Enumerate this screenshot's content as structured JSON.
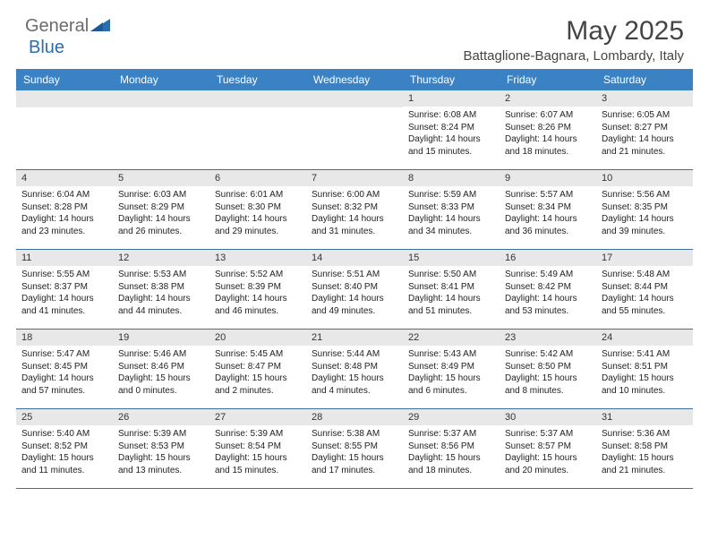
{
  "logo": {
    "text1": "General",
    "text2": "Blue"
  },
  "title": "May 2025",
  "location": "Battaglione-Bagnara, Lombardy, Italy",
  "colors": {
    "header_bg": "#3b82c4",
    "header_text": "#ffffff",
    "daynum_bg": "#e8e8e8",
    "border": "#3b6fa0",
    "logo_gray": "#6b6b6b",
    "logo_blue": "#2a6db0"
  },
  "dayNames": [
    "Sunday",
    "Monday",
    "Tuesday",
    "Wednesday",
    "Thursday",
    "Friday",
    "Saturday"
  ],
  "weeks": [
    [
      {
        "num": "",
        "sunrise": "",
        "sunset": "",
        "daylight": ""
      },
      {
        "num": "",
        "sunrise": "",
        "sunset": "",
        "daylight": ""
      },
      {
        "num": "",
        "sunrise": "",
        "sunset": "",
        "daylight": ""
      },
      {
        "num": "",
        "sunrise": "",
        "sunset": "",
        "daylight": ""
      },
      {
        "num": "1",
        "sunrise": "Sunrise: 6:08 AM",
        "sunset": "Sunset: 8:24 PM",
        "daylight": "Daylight: 14 hours and 15 minutes."
      },
      {
        "num": "2",
        "sunrise": "Sunrise: 6:07 AM",
        "sunset": "Sunset: 8:26 PM",
        "daylight": "Daylight: 14 hours and 18 minutes."
      },
      {
        "num": "3",
        "sunrise": "Sunrise: 6:05 AM",
        "sunset": "Sunset: 8:27 PM",
        "daylight": "Daylight: 14 hours and 21 minutes."
      }
    ],
    [
      {
        "num": "4",
        "sunrise": "Sunrise: 6:04 AM",
        "sunset": "Sunset: 8:28 PM",
        "daylight": "Daylight: 14 hours and 23 minutes."
      },
      {
        "num": "5",
        "sunrise": "Sunrise: 6:03 AM",
        "sunset": "Sunset: 8:29 PM",
        "daylight": "Daylight: 14 hours and 26 minutes."
      },
      {
        "num": "6",
        "sunrise": "Sunrise: 6:01 AM",
        "sunset": "Sunset: 8:30 PM",
        "daylight": "Daylight: 14 hours and 29 minutes."
      },
      {
        "num": "7",
        "sunrise": "Sunrise: 6:00 AM",
        "sunset": "Sunset: 8:32 PM",
        "daylight": "Daylight: 14 hours and 31 minutes."
      },
      {
        "num": "8",
        "sunrise": "Sunrise: 5:59 AM",
        "sunset": "Sunset: 8:33 PM",
        "daylight": "Daylight: 14 hours and 34 minutes."
      },
      {
        "num": "9",
        "sunrise": "Sunrise: 5:57 AM",
        "sunset": "Sunset: 8:34 PM",
        "daylight": "Daylight: 14 hours and 36 minutes."
      },
      {
        "num": "10",
        "sunrise": "Sunrise: 5:56 AM",
        "sunset": "Sunset: 8:35 PM",
        "daylight": "Daylight: 14 hours and 39 minutes."
      }
    ],
    [
      {
        "num": "11",
        "sunrise": "Sunrise: 5:55 AM",
        "sunset": "Sunset: 8:37 PM",
        "daylight": "Daylight: 14 hours and 41 minutes."
      },
      {
        "num": "12",
        "sunrise": "Sunrise: 5:53 AM",
        "sunset": "Sunset: 8:38 PM",
        "daylight": "Daylight: 14 hours and 44 minutes."
      },
      {
        "num": "13",
        "sunrise": "Sunrise: 5:52 AM",
        "sunset": "Sunset: 8:39 PM",
        "daylight": "Daylight: 14 hours and 46 minutes."
      },
      {
        "num": "14",
        "sunrise": "Sunrise: 5:51 AM",
        "sunset": "Sunset: 8:40 PM",
        "daylight": "Daylight: 14 hours and 49 minutes."
      },
      {
        "num": "15",
        "sunrise": "Sunrise: 5:50 AM",
        "sunset": "Sunset: 8:41 PM",
        "daylight": "Daylight: 14 hours and 51 minutes."
      },
      {
        "num": "16",
        "sunrise": "Sunrise: 5:49 AM",
        "sunset": "Sunset: 8:42 PM",
        "daylight": "Daylight: 14 hours and 53 minutes."
      },
      {
        "num": "17",
        "sunrise": "Sunrise: 5:48 AM",
        "sunset": "Sunset: 8:44 PM",
        "daylight": "Daylight: 14 hours and 55 minutes."
      }
    ],
    [
      {
        "num": "18",
        "sunrise": "Sunrise: 5:47 AM",
        "sunset": "Sunset: 8:45 PM",
        "daylight": "Daylight: 14 hours and 57 minutes."
      },
      {
        "num": "19",
        "sunrise": "Sunrise: 5:46 AM",
        "sunset": "Sunset: 8:46 PM",
        "daylight": "Daylight: 15 hours and 0 minutes."
      },
      {
        "num": "20",
        "sunrise": "Sunrise: 5:45 AM",
        "sunset": "Sunset: 8:47 PM",
        "daylight": "Daylight: 15 hours and 2 minutes."
      },
      {
        "num": "21",
        "sunrise": "Sunrise: 5:44 AM",
        "sunset": "Sunset: 8:48 PM",
        "daylight": "Daylight: 15 hours and 4 minutes."
      },
      {
        "num": "22",
        "sunrise": "Sunrise: 5:43 AM",
        "sunset": "Sunset: 8:49 PM",
        "daylight": "Daylight: 15 hours and 6 minutes."
      },
      {
        "num": "23",
        "sunrise": "Sunrise: 5:42 AM",
        "sunset": "Sunset: 8:50 PM",
        "daylight": "Daylight: 15 hours and 8 minutes."
      },
      {
        "num": "24",
        "sunrise": "Sunrise: 5:41 AM",
        "sunset": "Sunset: 8:51 PM",
        "daylight": "Daylight: 15 hours and 10 minutes."
      }
    ],
    [
      {
        "num": "25",
        "sunrise": "Sunrise: 5:40 AM",
        "sunset": "Sunset: 8:52 PM",
        "daylight": "Daylight: 15 hours and 11 minutes."
      },
      {
        "num": "26",
        "sunrise": "Sunrise: 5:39 AM",
        "sunset": "Sunset: 8:53 PM",
        "daylight": "Daylight: 15 hours and 13 minutes."
      },
      {
        "num": "27",
        "sunrise": "Sunrise: 5:39 AM",
        "sunset": "Sunset: 8:54 PM",
        "daylight": "Daylight: 15 hours and 15 minutes."
      },
      {
        "num": "28",
        "sunrise": "Sunrise: 5:38 AM",
        "sunset": "Sunset: 8:55 PM",
        "daylight": "Daylight: 15 hours and 17 minutes."
      },
      {
        "num": "29",
        "sunrise": "Sunrise: 5:37 AM",
        "sunset": "Sunset: 8:56 PM",
        "daylight": "Daylight: 15 hours and 18 minutes."
      },
      {
        "num": "30",
        "sunrise": "Sunrise: 5:37 AM",
        "sunset": "Sunset: 8:57 PM",
        "daylight": "Daylight: 15 hours and 20 minutes."
      },
      {
        "num": "31",
        "sunrise": "Sunrise: 5:36 AM",
        "sunset": "Sunset: 8:58 PM",
        "daylight": "Daylight: 15 hours and 21 minutes."
      }
    ]
  ]
}
